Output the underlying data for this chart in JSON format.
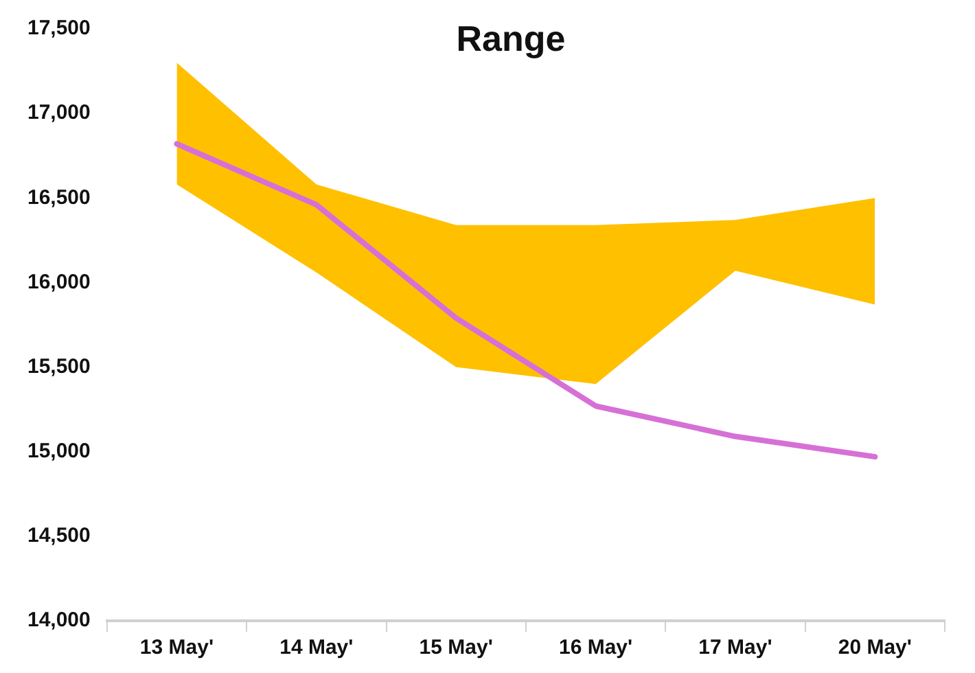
{
  "chart_data": {
    "type": "line",
    "title": "Range",
    "categories": [
      "13 May'",
      "14 May'",
      "15 May'",
      "16 May'",
      "17 May'",
      "20 May'"
    ],
    "series": [
      {
        "type": "line",
        "color": "#d670d6",
        "values": [
          16820,
          16460,
          15790,
          15270,
          15090,
          14970
        ],
        "lower": [
          16580,
          16060,
          15500,
          15400,
          16070,
          15870
        ],
        "upper": [
          17300,
          16580,
          16340,
          16340,
          16370,
          16500
        ]
      }
    ],
    "ylim": [
      14000,
      17500
    ],
    "yticks": [
      {
        "value": 14000,
        "label": "14,000"
      },
      {
        "value": 14500,
        "label": "14,500"
      },
      {
        "value": 15000,
        "label": "15,000"
      },
      {
        "value": 15500,
        "label": "15,500"
      },
      {
        "value": 16000,
        "label": "16,000"
      },
      {
        "value": 16500,
        "label": "16,500"
      },
      {
        "value": 17000,
        "label": "17,000"
      },
      {
        "value": 17500,
        "label": "17,500"
      }
    ],
    "grid": false,
    "legend": false,
    "marker": "none"
  }
}
